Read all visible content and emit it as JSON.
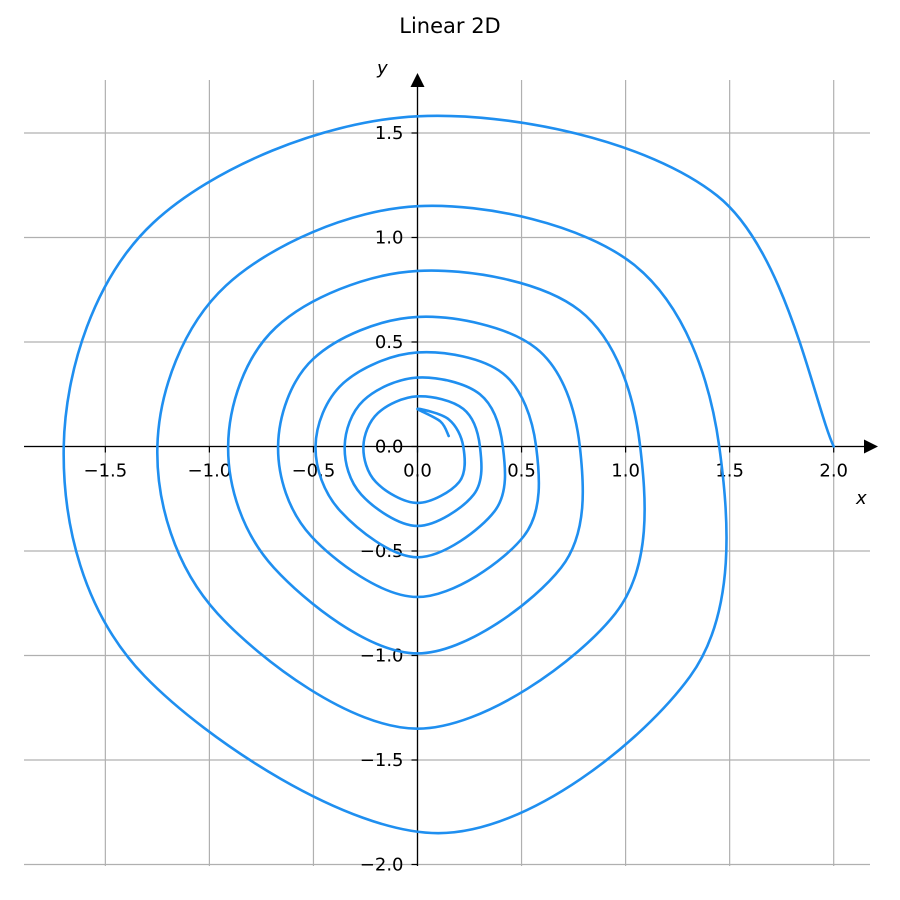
{
  "chart_data": {
    "type": "line",
    "title": "Linear 2D",
    "xlabel": "x",
    "ylabel": "y",
    "xlim": [
      -1.89,
      2.18
    ],
    "ylim": [
      -2.0,
      1.75
    ],
    "grid": true,
    "axes_style": "centered-through-origin-with-arrows",
    "x_ticks": [
      -1.5,
      -1.0,
      -0.5,
      0.0,
      0.5,
      1.0,
      1.5,
      2.0
    ],
    "x_tick_labels": [
      "−1.5",
      "−1.0",
      "−0.5",
      "0.0",
      "0.5",
      "1.0",
      "1.5",
      "2.0"
    ],
    "y_ticks": [
      -2.0,
      -1.5,
      -1.0,
      -0.5,
      0.0,
      0.5,
      1.0,
      1.5
    ],
    "y_tick_labels": [
      "−2.0",
      "−1.5",
      "−1.0",
      "−0.5",
      "0.0",
      "0.5",
      "1.0",
      "1.5"
    ],
    "series": [
      {
        "color": "#1f8ff0",
        "points": [
          [
            2.0,
            0.0
          ],
          [
            1.44,
            1.2
          ],
          [
            0.0,
            1.58
          ],
          [
            -1.27,
            1.07
          ],
          [
            -1.7,
            0.0
          ],
          [
            -1.31,
            -1.1
          ],
          [
            0.1,
            -1.85
          ],
          [
            1.31,
            -1.1
          ],
          [
            1.45,
            0.0
          ],
          [
            1.04,
            0.87
          ],
          [
            0.0,
            1.15
          ],
          [
            -0.92,
            0.77
          ],
          [
            -1.25,
            0.0
          ],
          [
            -0.96,
            -0.8
          ],
          [
            0.0,
            -1.35
          ],
          [
            0.95,
            -0.8
          ],
          [
            1.07,
            0.0
          ],
          [
            0.78,
            0.65
          ],
          [
            0.0,
            0.84
          ],
          [
            -0.68,
            0.57
          ],
          [
            -0.91,
            0.0
          ],
          [
            -0.69,
            -0.58
          ],
          [
            0.0,
            -0.99
          ],
          [
            0.69,
            -0.58
          ],
          [
            0.78,
            0.0
          ],
          [
            0.57,
            0.47
          ],
          [
            0.0,
            0.62
          ],
          [
            -0.5,
            0.42
          ],
          [
            -0.67,
            0.0
          ],
          [
            -0.51,
            -0.43
          ],
          [
            0.0,
            -0.72
          ],
          [
            0.51,
            -0.43
          ],
          [
            0.57,
            0.0
          ],
          [
            0.41,
            0.35
          ],
          [
            0.0,
            0.45
          ],
          [
            -0.36,
            0.3
          ],
          [
            -0.49,
            0.0
          ],
          [
            -0.37,
            -0.31
          ],
          [
            0.0,
            -0.53
          ],
          [
            0.37,
            -0.31
          ],
          [
            0.41,
            0.0
          ],
          [
            0.3,
            0.25
          ],
          [
            0.0,
            0.33
          ],
          [
            -0.26,
            0.22
          ],
          [
            -0.35,
            0.0
          ],
          [
            -0.27,
            -0.23
          ],
          [
            0.0,
            -0.38
          ],
          [
            0.27,
            -0.23
          ],
          [
            0.3,
            0.0
          ],
          [
            0.22,
            0.18
          ],
          [
            0.0,
            0.24
          ],
          [
            -0.19,
            0.16
          ],
          [
            -0.26,
            0.0
          ],
          [
            -0.2,
            -0.17
          ],
          [
            0.0,
            -0.27
          ],
          [
            0.2,
            -0.17
          ],
          [
            0.22,
            0.0
          ],
          [
            0.15,
            0.13
          ],
          [
            0.0,
            0.18
          ],
          [
            0.11,
            0.12
          ],
          [
            0.15,
            0.05
          ]
        ]
      }
    ]
  }
}
